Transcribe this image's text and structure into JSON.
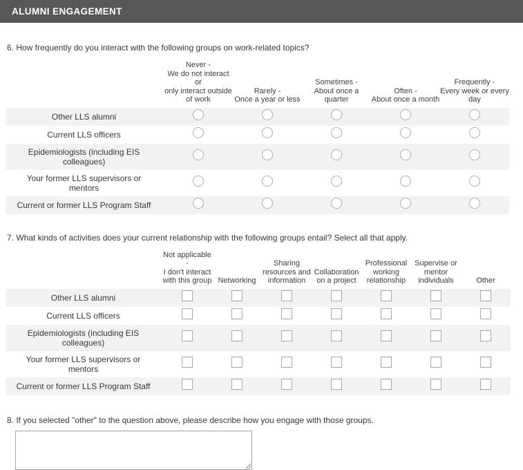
{
  "header": {
    "title": "ALUMNI ENGAGEMENT",
    "background_color": "#58585a"
  },
  "colors": {
    "row_stripe": "#f2f2f2",
    "text": "#363636",
    "control_border": "#adadad"
  },
  "q6": {
    "question": "6. How frequently do you interact with the following groups on work-related topics?",
    "columns": [
      "Never -\nWe do not interact or\nonly interact outside\nof work",
      "Rarely -\nOnce a year or less",
      "Sometimes -\nAbout once a quarter",
      "Often -\nAbout once a month",
      "Frequently -\nEvery week or every\nday"
    ],
    "rows": [
      "Other LLS alumni",
      "Current LLS officers",
      "Epidemiologists (including EIS colleagues)",
      "Your former LLS supervisors or mentors",
      "Current or former LLS Program Staff"
    ],
    "control_type": "radio",
    "selected": []
  },
  "q7": {
    "question": "7. What kinds of activities does your current relationship with the following groups entail? Select all that apply.",
    "columns": [
      "Not applicable -\nI don't interact\nwith this group",
      "Networking",
      "Sharing\nresources and\ninformation",
      "Collaboration\non a project",
      "Professional\nworking\nrelationship",
      "Supervise or\nmentor\nindividuals",
      "Other"
    ],
    "rows": [
      "Other LLS alumni",
      "Current LLS officers",
      "Epidemiologists (including EIS colleagues)",
      "Your former LLS supervisors or mentors",
      "Current or former LLS Program Staff"
    ],
    "control_type": "checkbox",
    "checked": []
  },
  "q8": {
    "question": "8. If you selected \"other\" to the question above, please describe how you engage with those groups.",
    "answer_value": "",
    "answer_placeholder": ""
  }
}
